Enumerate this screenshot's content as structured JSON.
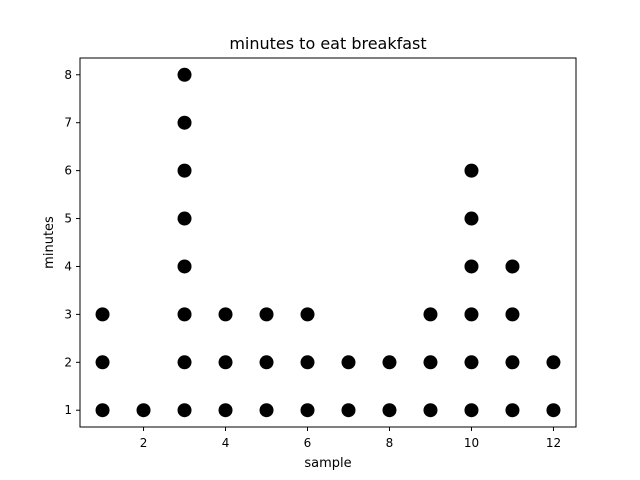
{
  "chart_data": {
    "type": "scatter",
    "title": "minutes to eat breakfast",
    "xlabel": "sample",
    "ylabel": "minutes",
    "xlim": [
      0.45,
      12.55
    ],
    "ylim": [
      0.65,
      8.35
    ],
    "xticks": [
      2,
      4,
      6,
      8,
      10,
      12
    ],
    "yticks": [
      1,
      2,
      3,
      4,
      5,
      6,
      7,
      8
    ],
    "grid": false,
    "marker_color": "#000000",
    "points": [
      {
        "x": 1,
        "y": 1
      },
      {
        "x": 1,
        "y": 2
      },
      {
        "x": 1,
        "y": 3
      },
      {
        "x": 2,
        "y": 1
      },
      {
        "x": 3,
        "y": 1
      },
      {
        "x": 3,
        "y": 2
      },
      {
        "x": 3,
        "y": 3
      },
      {
        "x": 3,
        "y": 4
      },
      {
        "x": 3,
        "y": 5
      },
      {
        "x": 3,
        "y": 6
      },
      {
        "x": 3,
        "y": 7
      },
      {
        "x": 3,
        "y": 8
      },
      {
        "x": 4,
        "y": 1
      },
      {
        "x": 4,
        "y": 2
      },
      {
        "x": 4,
        "y": 3
      },
      {
        "x": 5,
        "y": 1
      },
      {
        "x": 5,
        "y": 2
      },
      {
        "x": 5,
        "y": 3
      },
      {
        "x": 6,
        "y": 1
      },
      {
        "x": 6,
        "y": 2
      },
      {
        "x": 6,
        "y": 3
      },
      {
        "x": 7,
        "y": 1
      },
      {
        "x": 7,
        "y": 2
      },
      {
        "x": 8,
        "y": 1
      },
      {
        "x": 8,
        "y": 2
      },
      {
        "x": 9,
        "y": 1
      },
      {
        "x": 9,
        "y": 2
      },
      {
        "x": 9,
        "y": 3
      },
      {
        "x": 10,
        "y": 1
      },
      {
        "x": 10,
        "y": 2
      },
      {
        "x": 10,
        "y": 3
      },
      {
        "x": 10,
        "y": 4
      },
      {
        "x": 10,
        "y": 5
      },
      {
        "x": 10,
        "y": 6
      },
      {
        "x": 11,
        "y": 1
      },
      {
        "x": 11,
        "y": 2
      },
      {
        "x": 11,
        "y": 3
      },
      {
        "x": 11,
        "y": 4
      },
      {
        "x": 12,
        "y": 1
      },
      {
        "x": 12,
        "y": 2
      }
    ]
  }
}
